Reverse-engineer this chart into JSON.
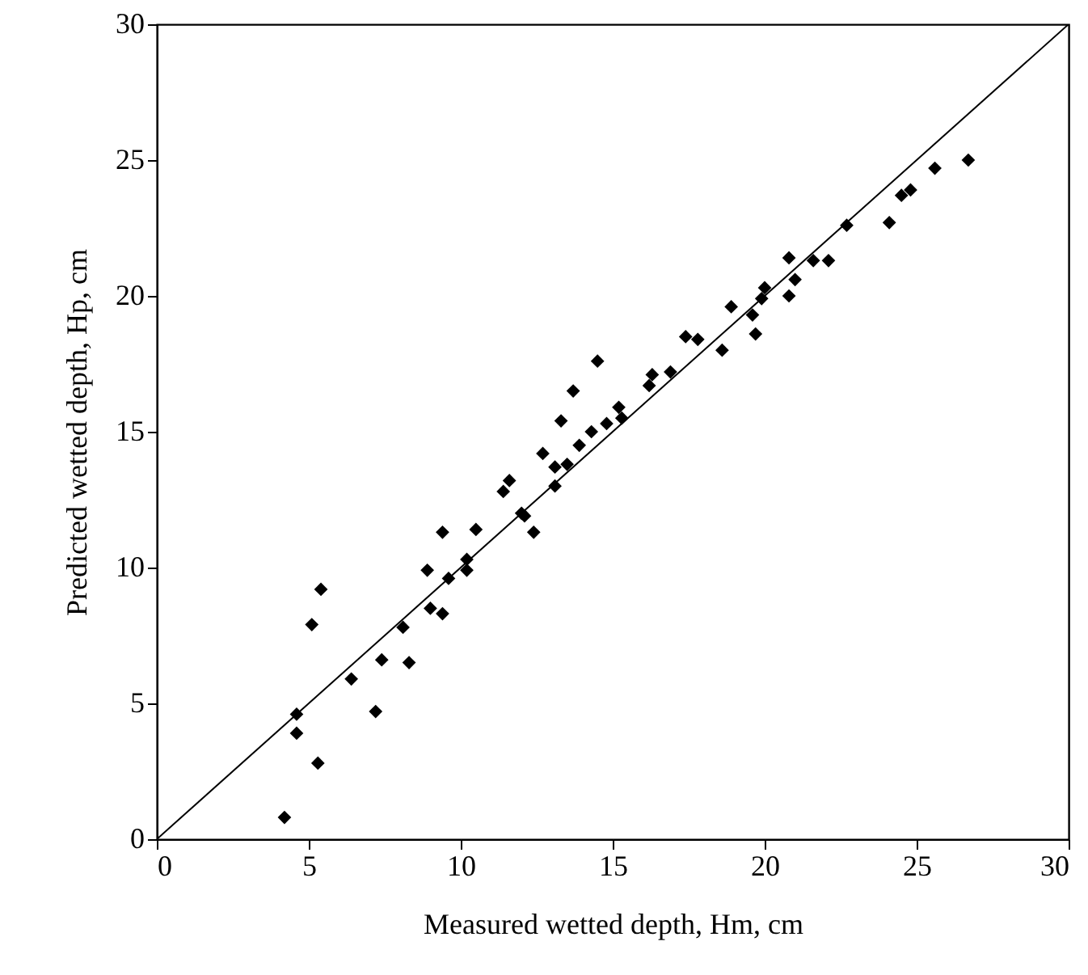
{
  "chart_data": {
    "type": "scatter",
    "xlabel": "Measured wetted depth, Hm, cm",
    "ylabel": "Predicted wetted depth, Hp, cm",
    "xlim": [
      0,
      30
    ],
    "ylim": [
      0,
      30
    ],
    "xticks": [
      0,
      5,
      10,
      15,
      20,
      25,
      30
    ],
    "yticks": [
      0,
      5,
      10,
      15,
      20,
      25,
      30
    ],
    "grid": false,
    "marker": "diamond",
    "series": [
      {
        "color": "#000000",
        "x": [
          4.2,
          4.6,
          4.6,
          5.3,
          5.1,
          5.4,
          6.4,
          7.2,
          7.4,
          8.1,
          8.3,
          8.9,
          9.0,
          9.4,
          9.4,
          9.6,
          10.2,
          10.2,
          10.5,
          11.4,
          11.6,
          12.0,
          12.1,
          12.4,
          12.7,
          13.1,
          13.1,
          13.3,
          13.5,
          13.7,
          13.9,
          14.3,
          14.5,
          14.8,
          15.2,
          15.3,
          16.2,
          16.3,
          16.9,
          17.4,
          17.8,
          18.6,
          18.9,
          19.6,
          19.7,
          19.9,
          20.0,
          20.8,
          20.8,
          21.0,
          21.6,
          22.1,
          22.7,
          24.1,
          24.5,
          24.8,
          25.6,
          26.7
        ],
        "values": [
          0.8,
          4.6,
          3.9,
          2.8,
          7.9,
          9.2,
          5.9,
          4.7,
          6.6,
          7.8,
          6.5,
          9.9,
          8.5,
          8.3,
          11.3,
          9.6,
          9.9,
          10.3,
          11.4,
          12.8,
          13.2,
          12.0,
          11.9,
          11.3,
          14.2,
          13.0,
          13.7,
          15.4,
          13.8,
          16.5,
          14.5,
          15.0,
          17.6,
          15.3,
          15.9,
          15.5,
          16.7,
          17.1,
          17.2,
          18.5,
          18.4,
          18.0,
          19.6,
          19.3,
          18.6,
          19.9,
          20.3,
          20.0,
          21.4,
          20.6,
          21.3,
          21.3,
          22.6,
          22.7,
          23.7,
          23.9,
          24.7,
          25.0
        ]
      },
      {
        "type": "line",
        "color": "#000000",
        "line_style": "solid",
        "marker": "none",
        "x": [
          0,
          30
        ],
        "values": [
          0,
          30
        ]
      }
    ]
  }
}
